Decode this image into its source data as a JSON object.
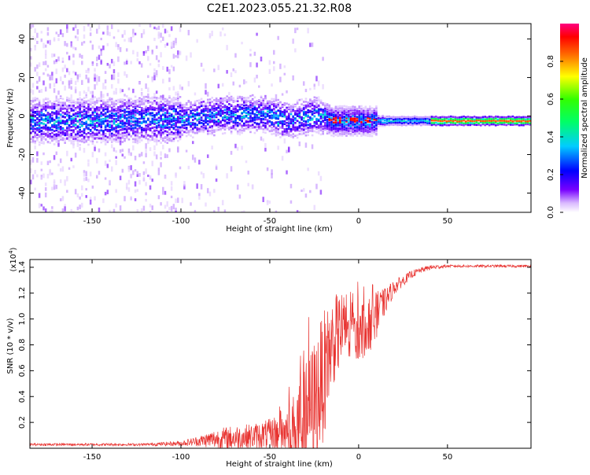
{
  "title": "C2E1.2023.055.21.32.R08",
  "chart_data": [
    {
      "type": "heatmap",
      "name": "spectrogram",
      "xlabel": "Height of straight line (km)",
      "ylabel": "Frequency (Hz)",
      "xlim": [
        -185,
        97
      ],
      "ylim": [
        -50,
        48
      ],
      "xticks": [
        -150,
        -100,
        -50,
        0,
        50
      ],
      "xtick_labels": [
        "-150",
        "-100",
        "-50",
        "0",
        "50"
      ],
      "yticks": [
        -40,
        -20,
        0,
        20,
        40
      ],
      "ytick_labels": [
        "-40",
        "-20",
        "0",
        "20",
        "40"
      ],
      "ridge": {
        "x": [
          -185,
          -150,
          -120,
          -100,
          -80,
          -60,
          -50,
          -40,
          -30,
          -22,
          -15,
          -5,
          0,
          10,
          30,
          60,
          97
        ],
        "y": [
          -2,
          -2,
          -1,
          -1,
          1,
          2,
          1,
          -2,
          0,
          1,
          -2,
          -2,
          -2,
          -2,
          -2,
          -2,
          -2
        ]
      },
      "colorbar": {
        "label": "Normalized spectral amplitude",
        "ticks": [
          0.0,
          0.2,
          0.4,
          0.6,
          0.8
        ],
        "tick_labels": [
          "0.0",
          "0.2",
          "0.4",
          "0.6",
          "0.8"
        ],
        "range": [
          0,
          1
        ]
      }
    },
    {
      "type": "line",
      "name": "snr",
      "xlabel": "Height of straight line (km)",
      "ylabel": "SNR (10 * v/v)",
      "scale_label": "(x10",
      "scale_exp": "4",
      "scale_close": ")",
      "xlim": [
        -185,
        97
      ],
      "ylim": [
        0,
        1.46
      ],
      "xticks": [
        -150,
        -100,
        -50,
        0,
        50
      ],
      "xtick_labels": [
        "-150",
        "-100",
        "-50",
        "0",
        "50"
      ],
      "yticks": [
        0.2,
        0.4,
        0.6,
        0.8,
        1.0,
        1.2,
        1.4
      ],
      "ytick_labels": [
        "0.2",
        "0.4",
        "0.6",
        "0.8",
        "1.0",
        "1.2",
        "1.4"
      ],
      "color": "#e8322f",
      "envelope": {
        "x": [
          -185,
          -150,
          -120,
          -100,
          -90,
          -80,
          -70,
          -60,
          -50,
          -40,
          -35,
          -30,
          -25,
          -20,
          -15,
          -10,
          -5,
          0,
          5,
          10,
          15,
          20,
          25,
          30,
          35,
          40,
          50,
          60,
          70,
          80,
          97
        ],
        "base": [
          0.03,
          0.03,
          0.03,
          0.04,
          0.06,
          0.08,
          0.09,
          0.1,
          0.12,
          0.15,
          0.2,
          0.28,
          0.4,
          0.6,
          0.85,
          0.95,
          0.95,
          0.95,
          0.95,
          1.05,
          1.15,
          1.25,
          1.3,
          1.35,
          1.38,
          1.4,
          1.41,
          1.41,
          1.41,
          1.41,
          1.41
        ],
        "spread": [
          0.01,
          0.01,
          0.01,
          0.02,
          0.04,
          0.08,
          0.1,
          0.1,
          0.12,
          0.2,
          0.3,
          0.45,
          0.5,
          0.5,
          0.35,
          0.3,
          0.3,
          0.25,
          0.22,
          0.18,
          0.1,
          0.06,
          0.04,
          0.03,
          0.02,
          0.02,
          0.01,
          0.01,
          0.01,
          0.01,
          0.01
        ]
      }
    }
  ]
}
